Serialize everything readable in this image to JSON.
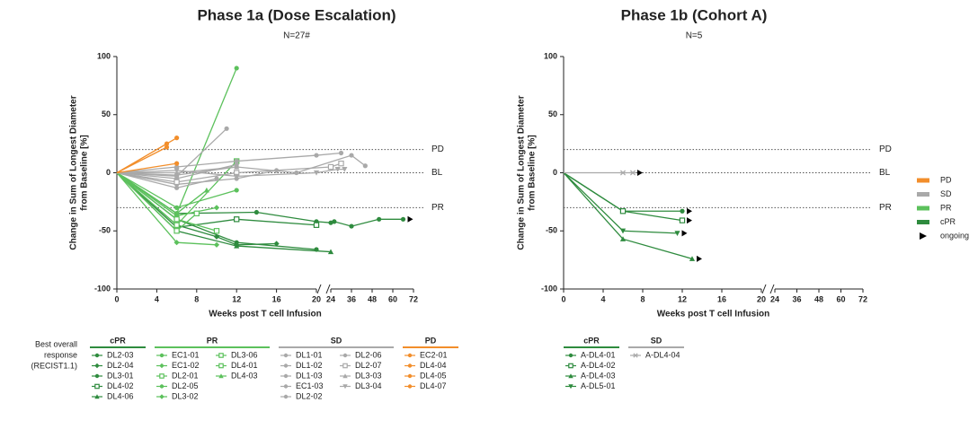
{
  "groups": [
    {
      "name": "PD",
      "color": "#f28e2b"
    },
    {
      "name": "SD",
      "color": "#a9a9a9"
    },
    {
      "name": "PR",
      "color": "#5cc15c"
    },
    {
      "name": "cPR",
      "color": "#2e8b3e"
    }
  ],
  "ongoing_label": "ongoing",
  "legend_title": [
    "Best overall",
    "response",
    "(RECIST1.1)"
  ],
  "chart_data": [
    {
      "type": "line",
      "title": "Phase 1a (Dose Escalation)",
      "subtitle": "N=27#",
      "x_label": "Weeks post T cell Infusion",
      "y_label": [
        "Change in Sum of Longest Diameter",
        "from Baseline [%]"
      ],
      "xlim": [
        0,
        72
      ],
      "xticks": [
        0,
        4,
        8,
        12,
        16,
        20,
        24,
        36,
        48,
        60,
        72
      ],
      "axis_break": [
        20,
        24
      ],
      "ylim": [
        -100,
        100
      ],
      "yticks": [
        -100,
        -50,
        0,
        50,
        100
      ],
      "reference_lines": [
        {
          "value": 20,
          "label": "PD"
        },
        {
          "value": 0,
          "label": "BL"
        },
        {
          "value": -30,
          "label": "PR"
        }
      ],
      "series": [
        {
          "name": "DL2-03",
          "group": "cPR",
          "color": "#2e8b3e",
          "marker": "circle",
          "ongoing": false,
          "x": [
            0,
            6,
            12,
            20
          ],
          "values": [
            0,
            -40,
            -60,
            -66
          ]
        },
        {
          "name": "DL2-04",
          "group": "cPR",
          "color": "#2e8b3e",
          "marker": "diamond",
          "ongoing": false,
          "x": [
            0,
            6,
            10,
            12,
            16
          ],
          "values": [
            0,
            -45,
            -55,
            -62,
            -61
          ]
        },
        {
          "name": "DL3-01",
          "group": "cPR",
          "color": "#2e8b3e",
          "marker": "circle",
          "ongoing": true,
          "x": [
            0,
            6,
            14,
            20,
            24,
            26,
            36,
            52,
            66
          ],
          "values": [
            0,
            -35,
            -34,
            -42,
            -43,
            -42,
            -46,
            -40,
            -40
          ]
        },
        {
          "name": "DL4-02",
          "group": "cPR",
          "color": "#2e8b3e",
          "marker": "square",
          "ongoing": false,
          "x": [
            0,
            6,
            12,
            20
          ],
          "values": [
            0,
            -47,
            -40,
            -45
          ]
        },
        {
          "name": "DL4-06",
          "group": "cPR",
          "color": "#2e8b3e",
          "marker": "triangle-up",
          "ongoing": false,
          "x": [
            0,
            6,
            12,
            24
          ],
          "values": [
            0,
            -50,
            -63,
            -68
          ]
        },
        {
          "name": "EC1-01",
          "group": "PR",
          "color": "#5cc15c",
          "marker": "circle",
          "ongoing": false,
          "x": [
            0,
            6,
            12
          ],
          "values": [
            0,
            -35,
            90
          ]
        },
        {
          "name": "EC1-02",
          "group": "PR",
          "color": "#5cc15c",
          "marker": "diamond",
          "ongoing": false,
          "x": [
            0,
            6,
            10
          ],
          "values": [
            0,
            -37,
            -30
          ]
        },
        {
          "name": "DL2-01",
          "group": "PR",
          "color": "#5cc15c",
          "marker": "square",
          "ongoing": false,
          "x": [
            0,
            6,
            12
          ],
          "values": [
            0,
            -45,
            10
          ]
        },
        {
          "name": "DL2-05",
          "group": "PR",
          "color": "#5cc15c",
          "marker": "circle",
          "ongoing": false,
          "x": [
            0,
            6,
            12
          ],
          "values": [
            0,
            -30,
            -15
          ]
        },
        {
          "name": "DL3-02",
          "group": "PR",
          "color": "#5cc15c",
          "marker": "diamond",
          "ongoing": false,
          "x": [
            0,
            6,
            10
          ],
          "values": [
            0,
            -60,
            -62
          ]
        },
        {
          "name": "DL3-06",
          "group": "PR",
          "color": "#5cc15c",
          "marker": "square",
          "ongoing": false,
          "x": [
            0,
            6,
            10
          ],
          "values": [
            0,
            -40,
            -50
          ]
        },
        {
          "name": "DL4-01",
          "group": "PR",
          "color": "#5cc15c",
          "marker": "square",
          "ongoing": false,
          "x": [
            0,
            6,
            8
          ],
          "values": [
            0,
            -50,
            -35
          ]
        },
        {
          "name": "DL4-03",
          "group": "PR",
          "color": "#5cc15c",
          "marker": "triangle-up",
          "ongoing": false,
          "x": [
            0,
            6,
            9
          ],
          "values": [
            0,
            -35,
            -15
          ]
        },
        {
          "name": "DL1-01",
          "group": "SD",
          "color": "#a9a9a9",
          "marker": "circle",
          "ongoing": false,
          "x": [
            0,
            6,
            11
          ],
          "values": [
            0,
            -3,
            38
          ]
        },
        {
          "name": "DL1-02",
          "group": "SD",
          "color": "#a9a9a9",
          "marker": "circle",
          "ongoing": false,
          "x": [
            0,
            6,
            12,
            20,
            30
          ],
          "values": [
            0,
            5,
            10,
            15,
            17
          ]
        },
        {
          "name": "DL1-03",
          "group": "SD",
          "color": "#a9a9a9",
          "marker": "circle",
          "ongoing": false,
          "x": [
            0,
            6,
            12,
            18,
            36,
            44
          ],
          "values": [
            0,
            -2,
            5,
            0,
            15,
            6
          ]
        },
        {
          "name": "EC1-03",
          "group": "SD",
          "color": "#a9a9a9",
          "marker": "circle",
          "ongoing": false,
          "x": [
            0,
            6,
            12
          ],
          "values": [
            0,
            -5,
            7
          ]
        },
        {
          "name": "DL2-02",
          "group": "SD",
          "color": "#a9a9a9",
          "marker": "circle",
          "ongoing": false,
          "x": [
            0,
            6,
            12,
            16
          ],
          "values": [
            0,
            -10,
            -5,
            2
          ]
        },
        {
          "name": "DL2-06",
          "group": "SD",
          "color": "#a9a9a9",
          "marker": "circle",
          "ongoing": false,
          "x": [
            0,
            6,
            10
          ],
          "values": [
            0,
            -13,
            -5
          ]
        },
        {
          "name": "DL2-07",
          "group": "SD",
          "color": "#a9a9a9",
          "marker": "square",
          "ongoing": false,
          "x": [
            0,
            6,
            12,
            24,
            30
          ],
          "values": [
            0,
            -8,
            0,
            5,
            8
          ]
        },
        {
          "name": "DL3-03",
          "group": "SD",
          "color": "#a9a9a9",
          "marker": "triangle-up",
          "ongoing": false,
          "x": [
            0,
            6,
            12
          ],
          "values": [
            0,
            0,
            5
          ]
        },
        {
          "name": "DL3-04",
          "group": "SD",
          "color": "#a9a9a9",
          "marker": "triangle-down",
          "ongoing": false,
          "x": [
            0,
            6,
            12,
            20,
            28,
            32
          ],
          "values": [
            0,
            2,
            -3,
            0,
            3,
            3
          ]
        },
        {
          "name": "EC2-01",
          "group": "PD",
          "color": "#f28e2b",
          "marker": "circle",
          "ongoing": false,
          "x": [
            0,
            5
          ],
          "values": [
            0,
            25
          ]
        },
        {
          "name": "DL4-04",
          "group": "PD",
          "color": "#f28e2b",
          "marker": "circle",
          "ongoing": false,
          "x": [
            0,
            6
          ],
          "values": [
            0,
            30
          ]
        },
        {
          "name": "DL4-05",
          "group": "PD",
          "color": "#f28e2b",
          "marker": "circle",
          "ongoing": false,
          "x": [
            0,
            5
          ],
          "values": [
            0,
            22
          ]
        },
        {
          "name": "DL4-07",
          "group": "PD",
          "color": "#f28e2b",
          "marker": "circle",
          "ongoing": false,
          "x": [
            0,
            6
          ],
          "values": [
            0,
            8
          ]
        }
      ]
    },
    {
      "type": "line",
      "title": "Phase 1b (Cohort A)",
      "subtitle": "N=5",
      "x_label": "Weeks post T cell Infusion",
      "y_label": [
        "Change in Sum of Longest Diameter",
        "from Baseline [%]"
      ],
      "xlim": [
        0,
        72
      ],
      "xticks": [
        0,
        4,
        8,
        12,
        16,
        20,
        24,
        36,
        48,
        60,
        72
      ],
      "axis_break": [
        20,
        24
      ],
      "ylim": [
        -100,
        100
      ],
      "yticks": [
        -100,
        -50,
        0,
        50,
        100
      ],
      "reference_lines": [
        {
          "value": 20,
          "label": "PD"
        },
        {
          "value": 0,
          "label": "BL"
        },
        {
          "value": -30,
          "label": "PR"
        }
      ],
      "series": [
        {
          "name": "A-DL4-01",
          "group": "cPR",
          "color": "#2e8b3e",
          "marker": "circle",
          "ongoing": true,
          "x": [
            0,
            6,
            12
          ],
          "values": [
            0,
            -33,
            -33
          ]
        },
        {
          "name": "A-DL4-02",
          "group": "cPR",
          "color": "#2e8b3e",
          "marker": "square",
          "ongoing": true,
          "x": [
            0,
            6,
            12
          ],
          "values": [
            0,
            -33,
            -41
          ]
        },
        {
          "name": "A-DL4-03",
          "group": "cPR",
          "color": "#2e8b3e",
          "marker": "triangle-up",
          "ongoing": true,
          "x": [
            0,
            6,
            13
          ],
          "values": [
            0,
            -57,
            -74
          ]
        },
        {
          "name": "A-DL5-01",
          "group": "cPR",
          "color": "#2e8b3e",
          "marker": "triangle-down",
          "ongoing": true,
          "x": [
            0,
            6,
            11.5
          ],
          "values": [
            0,
            -50,
            -52
          ]
        },
        {
          "name": "A-DL4-04",
          "group": "SD",
          "color": "#a9a9a9",
          "marker": "x",
          "ongoing": true,
          "x": [
            0,
            6,
            7
          ],
          "values": [
            0,
            0,
            0
          ]
        }
      ]
    }
  ]
}
